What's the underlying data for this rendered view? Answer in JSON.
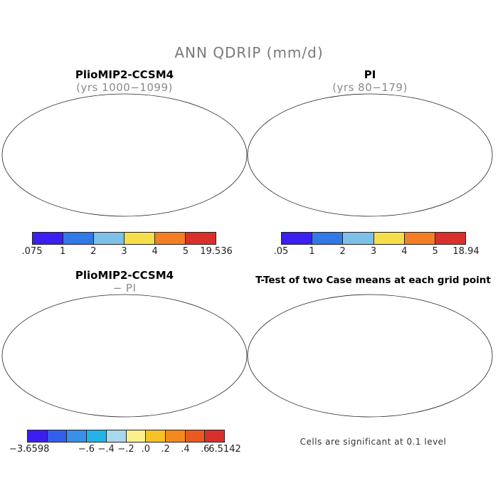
{
  "title": "ANN QDRIP (mm/d)",
  "panels": [
    {
      "title": "PlioMIP2-CCSM4",
      "subtitle": "(yrs 1000−1099)"
    },
    {
      "title": "PI",
      "subtitle": "(yrs 80−179)"
    },
    {
      "title": "PlioMIP2-CCSM4",
      "subtitle": "− PI"
    },
    {
      "title": "T-Test of two Case means at each grid point",
      "subtitle": ""
    }
  ],
  "colorbar1": {
    "colors": [
      "#3a1ff0",
      "#3079e6",
      "#7ec0e8",
      "#f4df4a",
      "#f57e24",
      "#d9302e"
    ],
    "labels": [
      ".075",
      "1",
      "2",
      "3",
      "4",
      "5",
      "19.536"
    ]
  },
  "colorbar2": {
    "colors": [
      "#3a1ff0",
      "#3079e6",
      "#7ec0e8",
      "#f4df4a",
      "#f57e24",
      "#d9302e"
    ],
    "labels": [
      ".05",
      "1",
      "2",
      "3",
      "4",
      "5",
      "18.94"
    ]
  },
  "colorbar3": {
    "colors": [
      "#3a1ff0",
      "#3360e8",
      "#3a8fe8",
      "#22b4e8",
      "#a9d7ee",
      "#fcf08c",
      "#f6c228",
      "#f48a1e",
      "#ea5a20",
      "#d9302e"
    ],
    "labels": [
      "−3.6598",
      "−.6",
      "−.4",
      "−.2",
      ".0",
      ".2",
      ".4",
      ".6",
      "6.5142"
    ]
  },
  "note": "Cells are significant at 0.1 level"
}
